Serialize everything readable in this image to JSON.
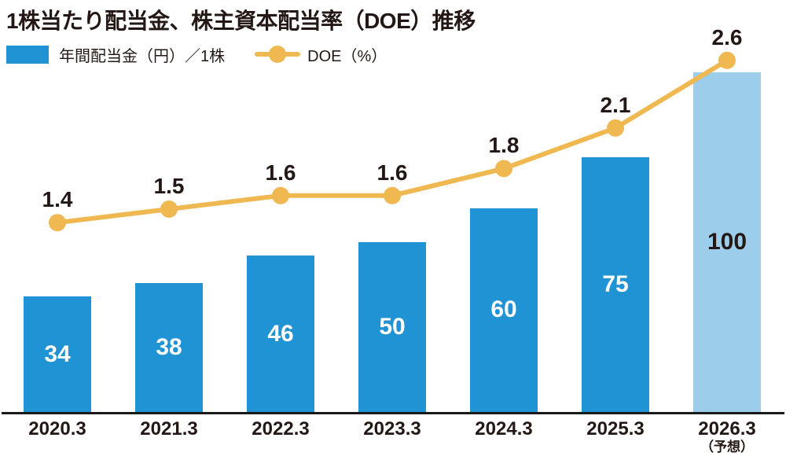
{
  "title": "1株当たり配当金、株主資本配当率（DOE）推移",
  "legend": {
    "bar_label": "年間配当金（円）／1株",
    "line_label": "DOE（%）"
  },
  "colors": {
    "bar": "#1F93D3",
    "bar_forecast": "#9CCDEB",
    "bar_value_text": "#FFFFFF",
    "line": "#F0B851",
    "text": "#231815",
    "axis": "#1A1A1A"
  },
  "chart_data": {
    "type": "bar+line combo",
    "title": "1株当たり配当金、株主資本配当率（DOE）推移",
    "categories": [
      "2020.3",
      "2021.3",
      "2022.3",
      "2023.3",
      "2024.3",
      "2025.3",
      "2026.3"
    ],
    "category_note": {
      "index": 6,
      "text": "（予想）"
    },
    "series": [
      {
        "name": "年間配当金（円）／1株",
        "type": "bar",
        "values": [
          34,
          38,
          46,
          50,
          60,
          75,
          100
        ],
        "forecast_index": 6
      },
      {
        "name": "DOE（%）",
        "type": "line",
        "values": [
          1.4,
          1.5,
          1.6,
          1.6,
          1.8,
          2.1,
          2.6
        ]
      }
    ],
    "legend_position": "top-left",
    "grid": false,
    "y_axis_visible": false,
    "value_labels_shown": true
  }
}
